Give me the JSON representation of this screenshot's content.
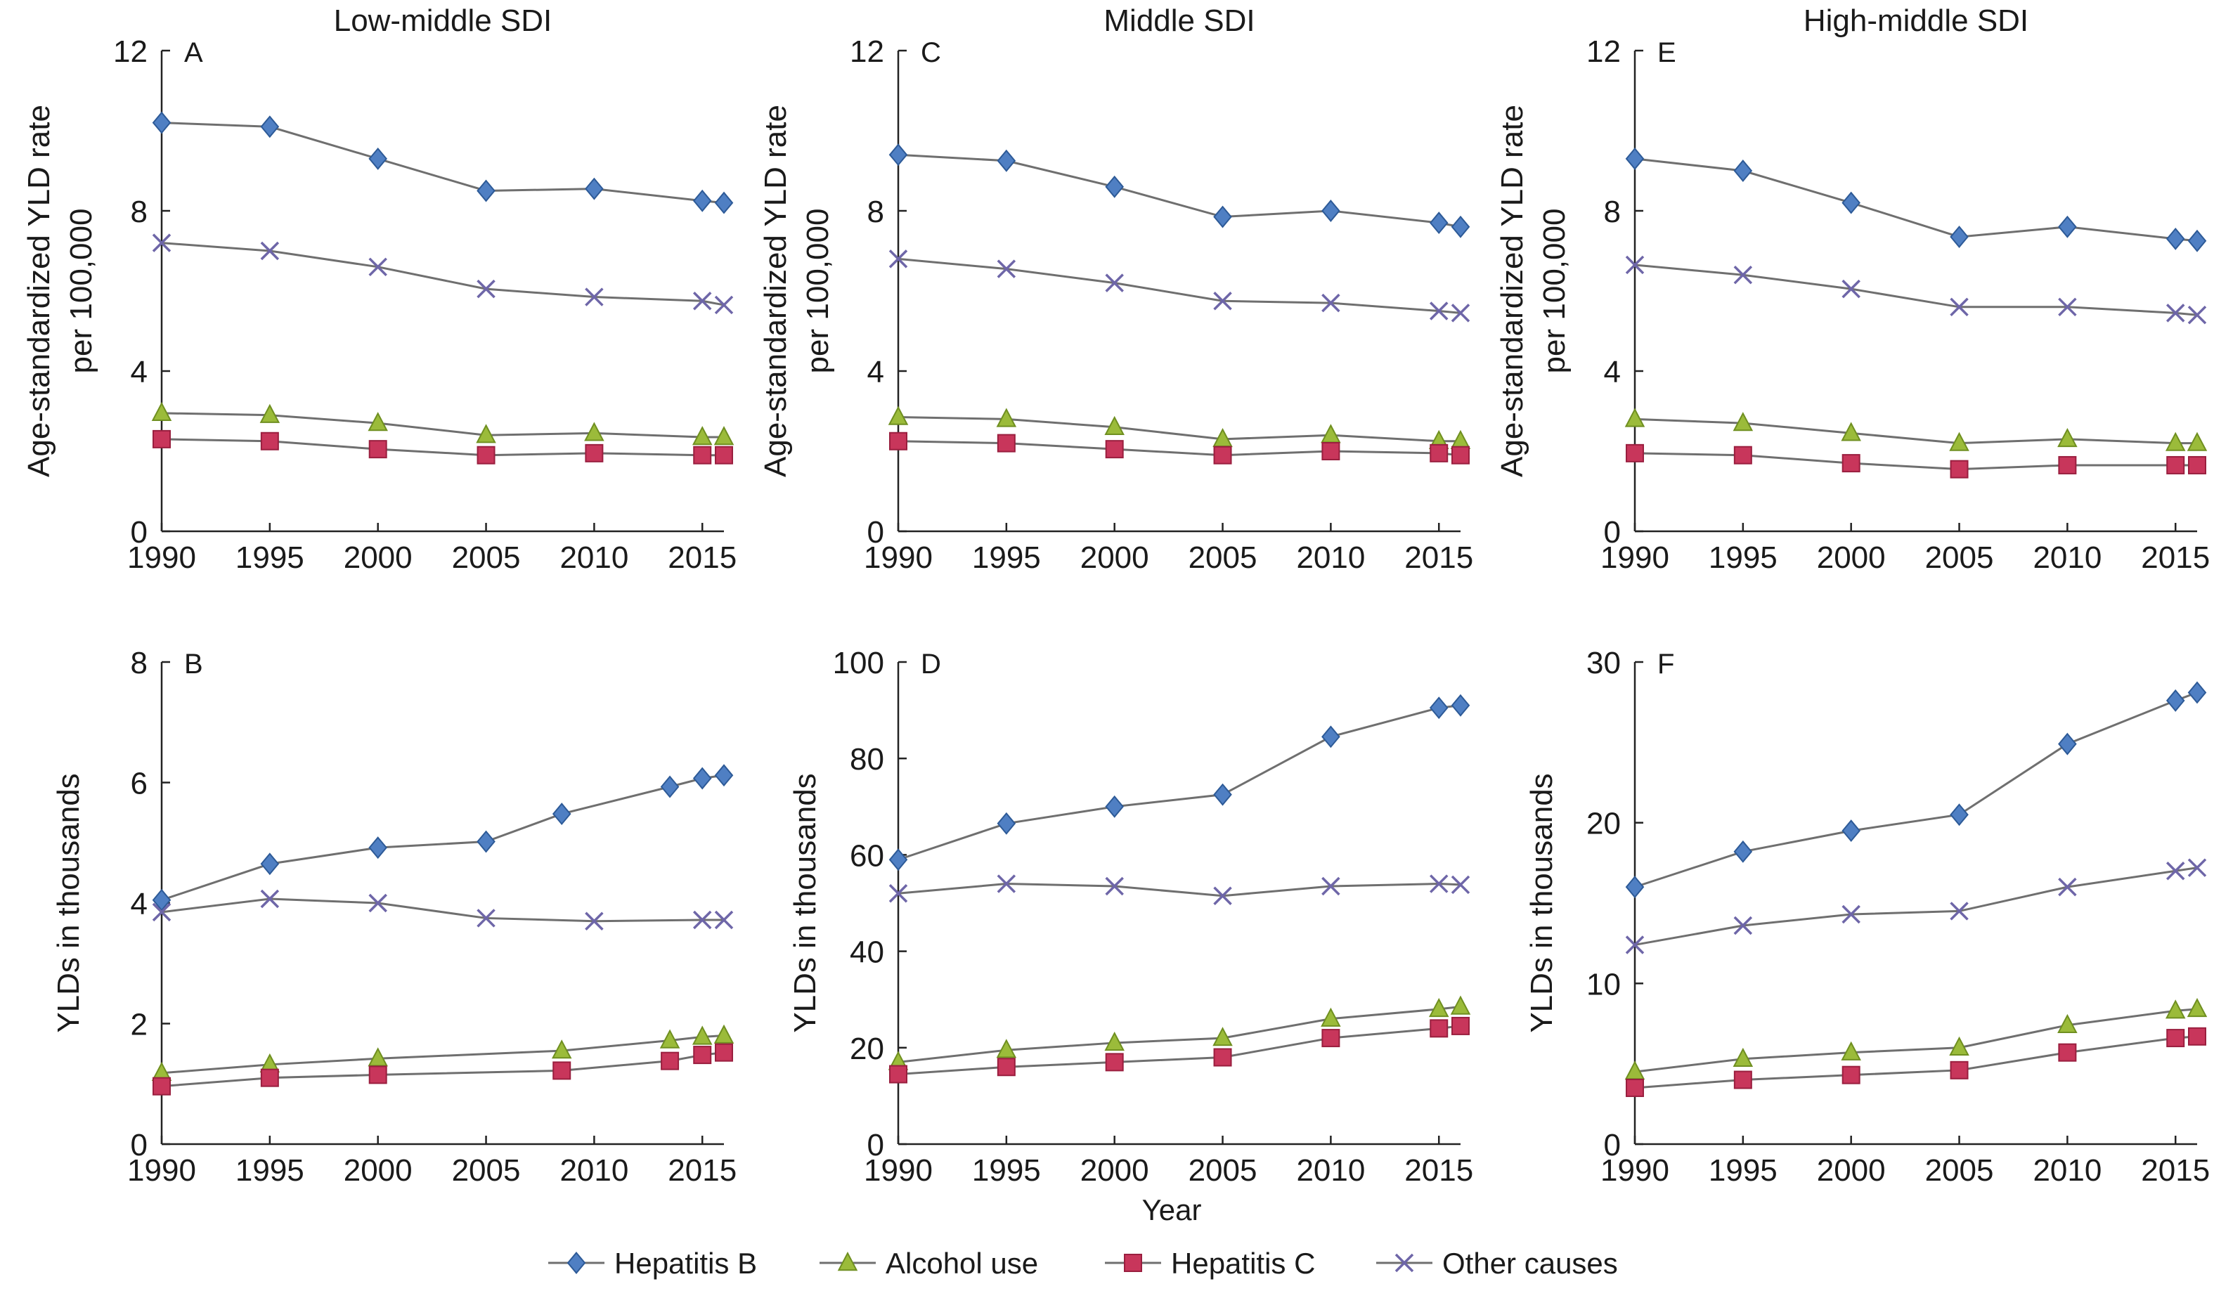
{
  "figure": {
    "xlabel": "Year",
    "legend": [
      {
        "name": "Hepatitis B",
        "marker": "diamond",
        "color": "#4f7fc3",
        "edge": "#2d5a97"
      },
      {
        "name": "Alcohol use",
        "marker": "triangle",
        "color": "#9bbb3a",
        "edge": "#6f8f20"
      },
      {
        "name": "Hepatitis C",
        "marker": "square",
        "color": "#c8365b",
        "edge": "#9a1f3f"
      },
      {
        "name": "Other causes",
        "marker": "x",
        "color": "#6e66a8",
        "edge": "#4f4888"
      }
    ],
    "line_color": "#6f6f6f"
  },
  "chart_data": [
    {
      "type": "line",
      "panel": "A",
      "title": "Low-middle SDI",
      "ylabel": [
        "Age-standardized YLD rate",
        "per 100,000"
      ],
      "xlim": [
        1990,
        2016
      ],
      "ylim": [
        0,
        12
      ],
      "xticks": [
        1990,
        1995,
        2000,
        2005,
        2010,
        2015
      ],
      "yticks": [
        0,
        4,
        8,
        12
      ],
      "series": [
        {
          "name": "Hepatitis B",
          "x": [
            1990,
            1995,
            2000,
            2005,
            2010,
            2015,
            2016
          ],
          "y": [
            10.2,
            10.1,
            9.3,
            8.5,
            8.55,
            8.25,
            8.2
          ]
        },
        {
          "name": "Other causes",
          "x": [
            1990,
            1995,
            2000,
            2005,
            2010,
            2015,
            2016
          ],
          "y": [
            7.2,
            7.0,
            6.6,
            6.05,
            5.85,
            5.75,
            5.65
          ]
        },
        {
          "name": "Alcohol use",
          "x": [
            1990,
            1995,
            2000,
            2005,
            2010,
            2015,
            2016
          ],
          "y": [
            2.95,
            2.9,
            2.7,
            2.4,
            2.45,
            2.35,
            2.35
          ]
        },
        {
          "name": "Hepatitis C",
          "x": [
            1990,
            1995,
            2000,
            2005,
            2010,
            2015,
            2016
          ],
          "y": [
            2.3,
            2.25,
            2.05,
            1.9,
            1.95,
            1.9,
            1.9
          ]
        }
      ]
    },
    {
      "type": "line",
      "panel": "C",
      "title": "Middle SDI",
      "ylabel": [
        "Age-standardized YLD rate",
        "per 100,000"
      ],
      "xlim": [
        1990,
        2016
      ],
      "ylim": [
        0,
        12
      ],
      "xticks": [
        1990,
        1995,
        2000,
        2005,
        2010,
        2015
      ],
      "yticks": [
        0,
        4,
        8,
        12
      ],
      "series": [
        {
          "name": "Hepatitis B",
          "x": [
            1990,
            1995,
            2000,
            2005,
            2010,
            2015,
            2016
          ],
          "y": [
            9.4,
            9.25,
            8.6,
            7.85,
            8.0,
            7.7,
            7.6
          ]
        },
        {
          "name": "Other causes",
          "x": [
            1990,
            1995,
            2000,
            2005,
            2010,
            2015,
            2016
          ],
          "y": [
            6.8,
            6.55,
            6.2,
            5.75,
            5.7,
            5.5,
            5.45
          ]
        },
        {
          "name": "Alcohol use",
          "x": [
            1990,
            1995,
            2000,
            2005,
            2010,
            2015,
            2016
          ],
          "y": [
            2.85,
            2.8,
            2.6,
            2.3,
            2.4,
            2.25,
            2.25
          ]
        },
        {
          "name": "Hepatitis C",
          "x": [
            1990,
            1995,
            2000,
            2005,
            2010,
            2015,
            2016
          ],
          "y": [
            2.25,
            2.2,
            2.05,
            1.9,
            2.0,
            1.95,
            1.9
          ]
        }
      ]
    },
    {
      "type": "line",
      "panel": "E",
      "title": "High-middle SDI",
      "ylabel": [
        "Age-standardized YLD rate",
        "per 100,000"
      ],
      "xlim": [
        1990,
        2016
      ],
      "ylim": [
        0,
        12
      ],
      "xticks": [
        1990,
        1995,
        2000,
        2005,
        2010,
        2015
      ],
      "yticks": [
        0,
        4,
        8,
        12
      ],
      "series": [
        {
          "name": "Hepatitis B",
          "x": [
            1990,
            1995,
            2000,
            2005,
            2010,
            2015,
            2016
          ],
          "y": [
            9.3,
            9.0,
            8.2,
            7.35,
            7.6,
            7.3,
            7.25
          ]
        },
        {
          "name": "Other causes",
          "x": [
            1990,
            1995,
            2000,
            2005,
            2010,
            2015,
            2016
          ],
          "y": [
            6.65,
            6.4,
            6.05,
            5.6,
            5.6,
            5.45,
            5.4
          ]
        },
        {
          "name": "Alcohol use",
          "x": [
            1990,
            1995,
            2000,
            2005,
            2010,
            2015,
            2016
          ],
          "y": [
            2.8,
            2.7,
            2.45,
            2.2,
            2.3,
            2.2,
            2.2
          ]
        },
        {
          "name": "Hepatitis C",
          "x": [
            1990,
            1995,
            2000,
            2005,
            2010,
            2015,
            2016
          ],
          "y": [
            1.95,
            1.9,
            1.7,
            1.55,
            1.65,
            1.65,
            1.65
          ]
        }
      ]
    },
    {
      "type": "line",
      "panel": "B",
      "title": "",
      "ylabel": [
        "YLDs in thousands"
      ],
      "xlim": [
        1990,
        2016
      ],
      "ylim": [
        0,
        8
      ],
      "xticks": [
        1990,
        1995,
        2000,
        2005,
        2010,
        2015
      ],
      "yticks": [
        0,
        2,
        4,
        6,
        8
      ],
      "series": [
        {
          "name": "Hepatitis B",
          "x": [
            1990,
            1995,
            2000,
            2005,
            2008.5,
            2013.5,
            2015,
            2016
          ],
          "y": [
            4.05,
            4.65,
            4.92,
            5.02,
            5.48,
            5.93,
            6.07,
            6.12
          ]
        },
        {
          "name": "Other causes",
          "x": [
            1990,
            1995,
            2000,
            2005,
            2010,
            2015,
            2016
          ],
          "y": [
            3.85,
            4.07,
            4.0,
            3.75,
            3.7,
            3.72,
            3.72
          ]
        },
        {
          "name": "Alcohol use",
          "x": [
            1990,
            1995,
            2000,
            2008.5,
            2013.5,
            2015,
            2016
          ],
          "y": [
            1.18,
            1.32,
            1.42,
            1.55,
            1.72,
            1.78,
            1.8
          ]
        },
        {
          "name": "Hepatitis C",
          "x": [
            1990,
            1995,
            2000,
            2008.5,
            2013.5,
            2015,
            2016
          ],
          "y": [
            0.96,
            1.1,
            1.15,
            1.22,
            1.38,
            1.48,
            1.52
          ]
        }
      ]
    },
    {
      "type": "line",
      "panel": "D",
      "title": "",
      "ylabel": [
        "YLDs in thousands"
      ],
      "xlim": [
        1990,
        2016
      ],
      "ylim": [
        0,
        100
      ],
      "xticks": [
        1990,
        1995,
        2000,
        2005,
        2010,
        2015
      ],
      "yticks": [
        0,
        20,
        40,
        60,
        80,
        100
      ],
      "series": [
        {
          "name": "Hepatitis B",
          "x": [
            1990,
            1995,
            2000,
            2005,
            2010,
            2015,
            2016
          ],
          "y": [
            59,
            66.5,
            70,
            72.5,
            84.5,
            90.5,
            91
          ]
        },
        {
          "name": "Other causes",
          "x": [
            1990,
            1995,
            2000,
            2005,
            2010,
            2015,
            2016
          ],
          "y": [
            52,
            54,
            53.5,
            51.5,
            53.5,
            54,
            53.8
          ]
        },
        {
          "name": "Alcohol use",
          "x": [
            1990,
            1995,
            2000,
            2005,
            2010,
            2015,
            2016
          ],
          "y": [
            17,
            19.5,
            21,
            22,
            26,
            28,
            28.5
          ]
        },
        {
          "name": "Hepatitis C",
          "x": [
            1990,
            1995,
            2000,
            2005,
            2010,
            2015,
            2016
          ],
          "y": [
            14.5,
            16,
            17,
            18,
            22,
            24,
            24.5
          ]
        }
      ]
    },
    {
      "type": "line",
      "panel": "F",
      "title": "",
      "ylabel": [
        "YLDs in thousands"
      ],
      "xlim": [
        1990,
        2016
      ],
      "ylim": [
        0,
        30
      ],
      "xticks": [
        1990,
        1995,
        2000,
        2005,
        2010,
        2015
      ],
      "yticks": [
        0,
        10,
        20,
        30
      ],
      "series": [
        {
          "name": "Hepatitis B",
          "x": [
            1990,
            1995,
            2000,
            2005,
            2010,
            2015,
            2016
          ],
          "y": [
            16,
            18.2,
            19.5,
            20.5,
            24.9,
            27.6,
            28.1
          ]
        },
        {
          "name": "Other causes",
          "x": [
            1990,
            1995,
            2000,
            2005,
            2010,
            2015,
            2016
          ],
          "y": [
            12.4,
            13.6,
            14.3,
            14.5,
            16.0,
            17.0,
            17.2
          ]
        },
        {
          "name": "Alcohol use",
          "x": [
            1990,
            1995,
            2000,
            2005,
            2010,
            2015,
            2016
          ],
          "y": [
            4.5,
            5.3,
            5.7,
            6.0,
            7.4,
            8.3,
            8.4
          ]
        },
        {
          "name": "Hepatitis C",
          "x": [
            1990,
            1995,
            2000,
            2005,
            2010,
            2015,
            2016
          ],
          "y": [
            3.5,
            4.0,
            4.3,
            4.6,
            5.7,
            6.6,
            6.7
          ]
        }
      ]
    }
  ]
}
